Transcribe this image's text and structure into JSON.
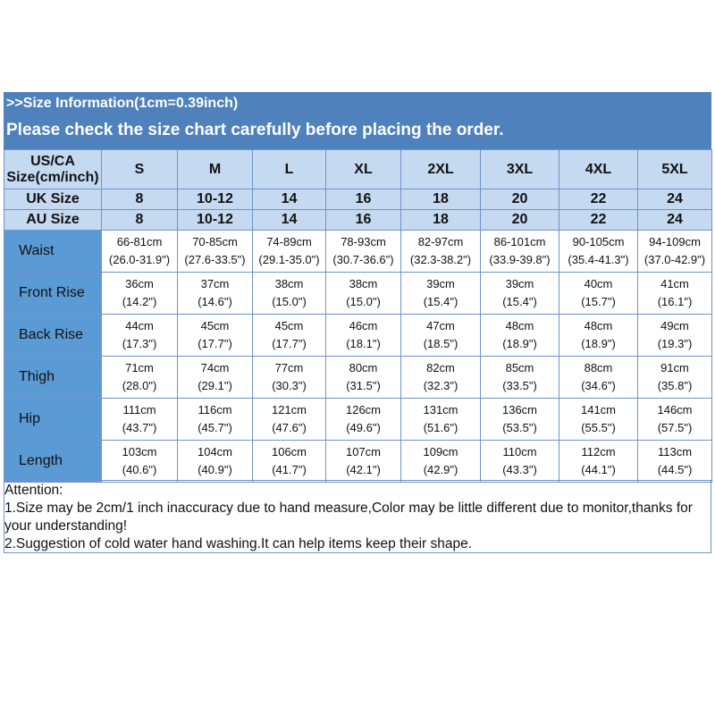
{
  "banner": {
    "line1": ">>Size Information(1cm=0.39inch)",
    "line2": "Please check the size chart carefully before placing the order."
  },
  "header": {
    "corner": "US/CA Size(cm/inch)",
    "sizes": [
      "S",
      "M",
      "L",
      "XL",
      "2XL",
      "3XL",
      "4XL",
      "5XL"
    ]
  },
  "uk": {
    "label": "UK Size",
    "values": [
      "8",
      "10-12",
      "14",
      "16",
      "18",
      "20",
      "22",
      "24"
    ]
  },
  "au": {
    "label": "AU Size",
    "values": [
      "8",
      "10-12",
      "14",
      "16",
      "18",
      "20",
      "22",
      "24"
    ]
  },
  "rows": [
    {
      "label": "Waist",
      "cm": [
        "66-81cm",
        "70-85cm",
        "74-89cm",
        "78-93cm",
        "82-97cm",
        "86-101cm",
        "90-105cm",
        "94-109cm"
      ],
      "inch": [
        "(26.0-31.9\")",
        "(27.6-33.5\")",
        "(29.1-35.0\")",
        "(30.7-36.6\")",
        "(32.3-38.2\")",
        "(33.9-39.8\")",
        "(35.4-41.3\")",
        "(37.0-42.9\")"
      ]
    },
    {
      "label": "Front Rise",
      "cm": [
        "36cm",
        "37cm",
        "38cm",
        "38cm",
        "39cm",
        "39cm",
        "40cm",
        "41cm"
      ],
      "inch": [
        "(14.2\")",
        "(14.6\")",
        "(15.0\")",
        "(15.0\")",
        "(15.4\")",
        "(15.4\")",
        "(15.7\")",
        "(16.1\")"
      ]
    },
    {
      "label": "Back Rise",
      "cm": [
        "44cm",
        "45cm",
        "45cm",
        "46cm",
        "47cm",
        "48cm",
        "48cm",
        "49cm"
      ],
      "inch": [
        "(17.3\")",
        "(17.7\")",
        "(17.7\")",
        "(18.1\")",
        "(18.5\")",
        "(18.9\")",
        "(18.9\")",
        "(19.3\")"
      ]
    },
    {
      "label": "Thigh",
      "cm": [
        "71cm",
        "74cm",
        "77cm",
        "80cm",
        "82cm",
        "85cm",
        "88cm",
        "91cm"
      ],
      "inch": [
        "(28.0\")",
        "(29.1\")",
        "(30.3\")",
        "(31.5\")",
        "(32.3\")",
        "(33.5\")",
        "(34.6\")",
        "(35.8\")"
      ]
    },
    {
      "label": "Hip",
      "cm": [
        "111cm",
        "116cm",
        "121cm",
        "126cm",
        "131cm",
        "136cm",
        "141cm",
        "146cm"
      ],
      "inch": [
        "(43.7\")",
        "(45.7\")",
        "(47.6\")",
        "(49.6\")",
        "(51.6\")",
        "(53.5\")",
        "(55.5\")",
        "(57.5\")"
      ]
    },
    {
      "label": "Length",
      "cm": [
        "103cm",
        "104cm",
        "106cm",
        "107cm",
        "109cm",
        "110cm",
        "112cm",
        "113cm"
      ],
      "inch": [
        "(40.6\")",
        "(40.9\")",
        "(41.7\")",
        "(42.1\")",
        "(42.9\")",
        "(43.3\")",
        "(44.1\")",
        "(44.5\")"
      ]
    }
  ],
  "note": {
    "title": "Attention:",
    "line1": "1.Size may be 2cm/1 inch inaccuracy due to hand measure,Color may be little different due to monitor,thanks for your understanding!",
    "line2": "2.Suggestion of cold water hand washing.It can help items keep their shape."
  }
}
